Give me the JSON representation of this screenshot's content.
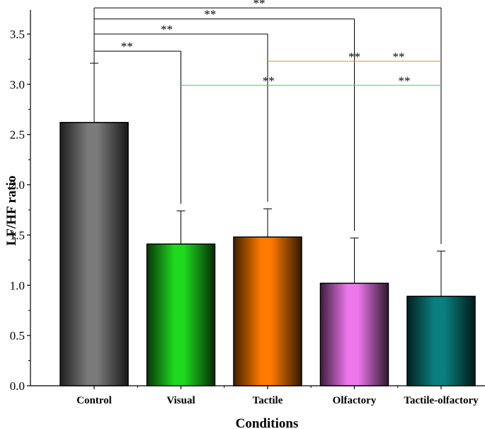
{
  "chart_data": {
    "type": "bar",
    "xlabel": "Conditions",
    "ylabel": "LF/HF ratio",
    "ylim": [
      0,
      3.5
    ],
    "yticks": [
      "0.0",
      "0.5",
      "1.0",
      "1.5",
      "2.0",
      "2.5",
      "3.0",
      "3.5"
    ],
    "categories": [
      "Control",
      "Visual",
      "Tactile",
      "Olfactory",
      "Tactile-olfactory"
    ],
    "values": [
      2.62,
      1.41,
      1.48,
      1.02,
      0.89
    ],
    "errors": [
      0.59,
      0.33,
      0.28,
      0.45,
      0.45
    ],
    "colors": [
      "#7a7a7a",
      "#1fd81f",
      "#ff7a00",
      "#ee77ee",
      "#0a7f7f"
    ],
    "grid": false,
    "significance": [
      {
        "from": "Control",
        "to": "Visual",
        "label": "**",
        "y": 3.33,
        "color": "#000000"
      },
      {
        "from": "Control",
        "to": "Tactile",
        "label": "**",
        "y": 3.5,
        "color": "#000000"
      },
      {
        "from": "Control",
        "to": "Olfactory",
        "label": "**",
        "y": 3.65,
        "color": "#000000"
      },
      {
        "from": "Control",
        "to": "Tactile-olfactory",
        "label": "**",
        "y": 3.76,
        "color": "#000000"
      },
      {
        "from": "Tactile",
        "to": "Tactile-olfactory",
        "label": "**",
        "y": 3.23,
        "color": "#ff8c1a"
      },
      {
        "from": "Visual",
        "to": "Tactile-olfactory",
        "label": "**",
        "y": 2.99,
        "color": "#3ddc3d"
      }
    ]
  }
}
